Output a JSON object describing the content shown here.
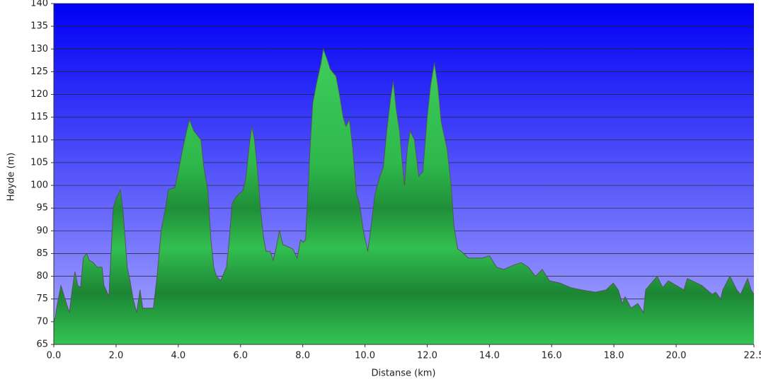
{
  "chart_data": {
    "type": "area",
    "x_label": "Distanse   (km)",
    "y_label": "Høyde (m)",
    "color": "#22a53f",
    "line_color": "#555555",
    "grid": true,
    "xlim": [
      0,
      22.5
    ],
    "ylim": [
      65,
      140
    ],
    "xticks": [
      {
        "value": 0,
        "label": "0.0"
      },
      {
        "value": 2,
        "label": "2.0"
      },
      {
        "value": 4,
        "label": "4.0"
      },
      {
        "value": 6,
        "label": "6.0"
      },
      {
        "value": 8,
        "label": "8.0"
      },
      {
        "value": 10,
        "label": "10.0"
      },
      {
        "value": 12,
        "label": "12.0"
      },
      {
        "value": 14,
        "label": "14.0"
      },
      {
        "value": 16,
        "label": "16.0"
      },
      {
        "value": 18,
        "label": "18.0"
      },
      {
        "value": 20,
        "label": "20.0"
      },
      22.5
    ],
    "yticks": [
      65,
      70,
      75,
      80,
      85,
      90,
      95,
      100,
      105,
      110,
      115,
      120,
      125,
      130,
      135,
      140
    ],
    "x": [
      0,
      0.05,
      0.09,
      0.23,
      0.36,
      0.5,
      0.59,
      0.68,
      0.77,
      0.86,
      0.95,
      1.05,
      1.14,
      1.27,
      1.39,
      1.55,
      1.61,
      1.68,
      1.77,
      1.84,
      1.91,
      2.0,
      2.14,
      2.23,
      2.36,
      2.45,
      2.55,
      2.66,
      2.77,
      2.86,
      3.2,
      3.32,
      3.45,
      3.59,
      3.68,
      3.89,
      4.0,
      4.14,
      4.27,
      4.36,
      4.5,
      4.73,
      4.82,
      4.95,
      5.05,
      5.14,
      5.23,
      5.36,
      5.55,
      5.64,
      5.73,
      5.86,
      6.09,
      6.18,
      6.27,
      6.36,
      6.45,
      6.55,
      6.64,
      6.73,
      6.82,
      6.95,
      7.05,
      7.14,
      7.25,
      7.36,
      7.52,
      7.68,
      7.82,
      7.93,
      8.02,
      8.09,
      8.25,
      8.32,
      8.43,
      8.59,
      8.66,
      8.77,
      8.89,
      9.07,
      9.18,
      9.3,
      9.39,
      9.5,
      9.61,
      9.73,
      9.82,
      9.95,
      10.09,
      10.18,
      10.32,
      10.48,
      10.59,
      10.7,
      10.82,
      10.91,
      11.0,
      11.11,
      11.2,
      11.27,
      11.36,
      11.45,
      11.59,
      11.73,
      11.86,
      12.0,
      12.11,
      12.23,
      12.34,
      12.45,
      12.64,
      12.77,
      12.86,
      12.98,
      13.09,
      13.32,
      13.77,
      14.0,
      14.23,
      14.45,
      14.8,
      15.02,
      15.25,
      15.48,
      15.7,
      15.93,
      16.27,
      16.61,
      16.95,
      17.41,
      17.75,
      17.98,
      18.14,
      18.27,
      18.36,
      18.55,
      18.77,
      18.95,
      19.02,
      19.39,
      19.57,
      19.75,
      20.25,
      20.36,
      20.82,
      21.16,
      21.27,
      21.43,
      21.5,
      21.73,
      21.95,
      22.07,
      22.3,
      22.41,
      22.5
    ],
    "values": [
      70,
      71,
      73,
      78,
      75,
      72,
      77,
      81,
      78,
      77.5,
      84,
      85,
      83.5,
      83,
      82,
      82,
      78,
      77,
      75.5,
      85,
      95,
      97,
      99,
      94,
      82,
      79,
      75,
      72,
      77,
      73,
      73,
      80,
      90,
      95,
      99,
      99.5,
      103,
      108,
      112,
      114.5,
      112,
      110,
      104,
      99,
      88,
      82,
      80,
      79,
      82,
      88,
      96,
      97.5,
      99,
      102,
      108,
      113,
      110,
      103,
      95,
      89,
      85.5,
      85.5,
      83.5,
      86,
      90,
      87,
      86.5,
      86,
      84,
      88,
      87.5,
      88,
      110,
      118,
      122,
      127,
      130,
      128,
      125.5,
      124,
      120,
      115,
      113,
      114.5,
      108,
      98,
      96,
      90,
      85.5,
      90,
      98,
      102,
      104,
      112,
      119,
      123,
      117,
      112,
      105,
      100,
      108,
      112,
      110,
      102,
      103,
      115,
      122,
      127,
      122,
      114,
      108,
      100,
      91,
      86,
      85.5,
      84,
      84,
      84.5,
      82,
      81.5,
      82.5,
      83,
      82,
      80,
      81.5,
      79,
      78.5,
      77.5,
      77,
      76.5,
      77,
      78.5,
      77,
      74,
      75.5,
      73,
      74,
      72,
      77,
      80,
      77.5,
      79,
      77,
      79.5,
      78,
      76,
      76.5,
      75,
      77,
      80,
      77,
      76,
      79.5,
      77,
      76
    ]
  }
}
